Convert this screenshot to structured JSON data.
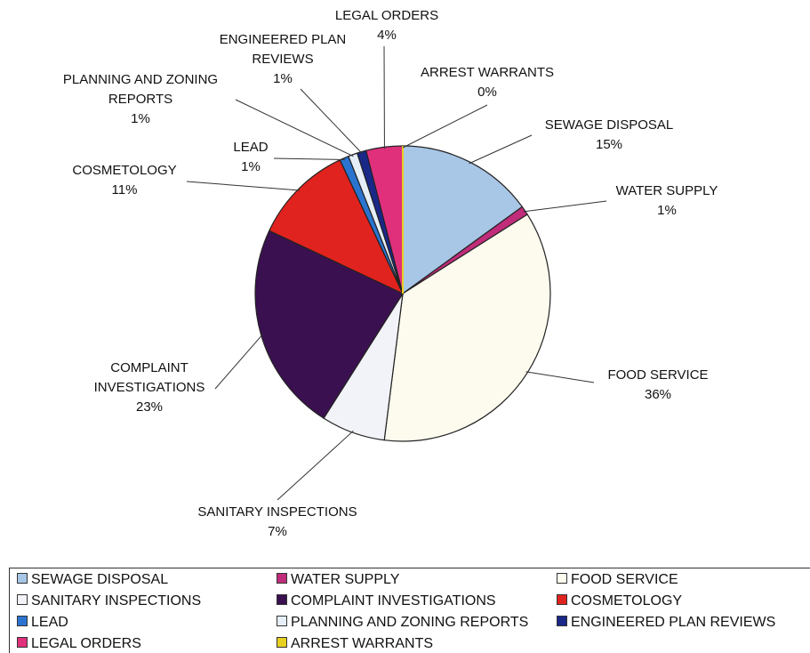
{
  "chart_data": {
    "type": "pie",
    "categories": [
      "SEWAGE DISPOSAL",
      "WATER SUPPLY",
      "FOOD SERVICE",
      "SANITARY INSPECTIONS",
      "COMPLAINT INVESTIGATIONS",
      "COSMETOLOGY",
      "LEAD",
      "PLANNING AND ZONING REPORTS",
      "ENGINEERED PLAN REVIEWS",
      "LEGAL ORDERS",
      "ARREST WARRANTS"
    ],
    "values": [
      15,
      1,
      36,
      7,
      23,
      11,
      1,
      1,
      1,
      4,
      0
    ],
    "value_labels": [
      "15%",
      "1%",
      "36%",
      "7%",
      "23%",
      "11%",
      "1%",
      "1%",
      "1%",
      "4%",
      "0%"
    ],
    "colors": [
      "#a8c6e6",
      "#c02c7a",
      "#fdfbee",
      "#f2f3f8",
      "#3b1050",
      "#e0231e",
      "#2a74d0",
      "#e6eef7",
      "#1a2888",
      "#e0307c",
      "#e8d020"
    ],
    "legend": "bottom"
  }
}
